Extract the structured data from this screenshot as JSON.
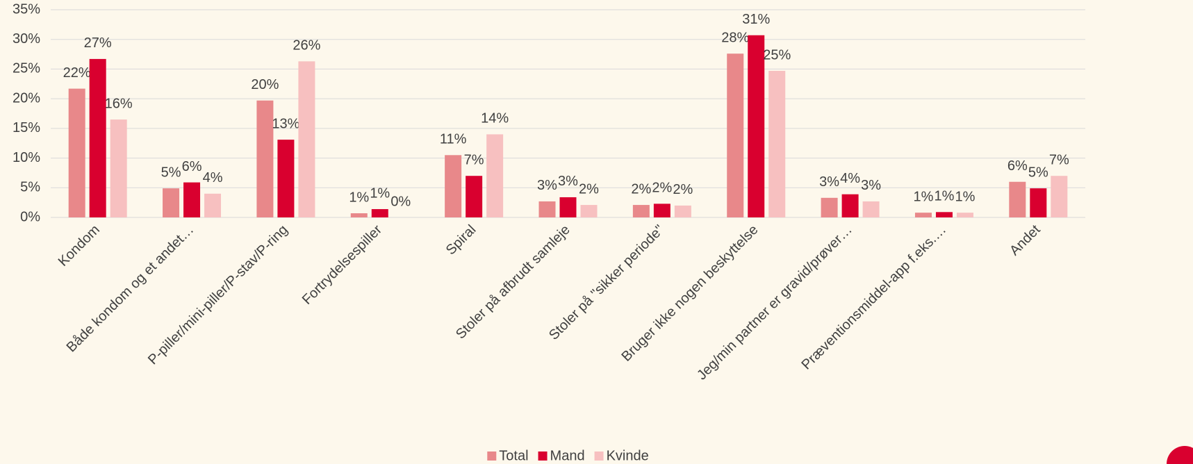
{
  "chart_data": {
    "type": "bar",
    "categories": [
      "Kondom",
      "Både kondom og et andet…",
      "P-piller/mini-piller/P-stav/P-ring",
      "Fortrydelsespiller",
      "Spiral",
      "Stoler på afbrudt samleje",
      "Stoler på \"sikker periode\"",
      "Bruger ikke nogen beskyttelse",
      "Jeg/min partner er gravid/prøver…",
      "Præventionsmiddel-app f.eks.…",
      "Andet"
    ],
    "series": [
      {
        "name": "Total",
        "color": "#e8888a",
        "values": [
          21.7,
          4.9,
          19.7,
          0.7,
          10.5,
          2.7,
          2.1,
          27.6,
          3.3,
          0.8,
          6.0
        ],
        "value_labels": [
          "22%",
          "5%",
          "20%",
          "1%",
          "11%",
          "3%",
          "2%",
          "28%",
          "3%",
          "1%",
          "6%"
        ]
      },
      {
        "name": "Mand",
        "color": "#d9002f",
        "values": [
          26.7,
          5.9,
          13.1,
          1.4,
          7.0,
          3.4,
          2.3,
          30.7,
          3.9,
          0.9,
          4.9
        ],
        "value_labels": [
          "27%",
          "6%",
          "13%",
          "1%",
          "7%",
          "3%",
          "2%",
          "31%",
          "4%",
          "1%",
          "5%"
        ]
      },
      {
        "name": "Kvinde",
        "color": "#f7c0c0",
        "values": [
          16.5,
          4.0,
          26.3,
          0,
          14.0,
          2.1,
          2.0,
          24.7,
          2.7,
          0.8,
          7.0
        ],
        "value_labels": [
          "16%",
          "4%",
          "26%",
          "0%",
          "14%",
          "2%",
          "2%",
          "25%",
          "3%",
          "1%",
          "7%"
        ]
      }
    ],
    "ylim": [
      0,
      35
    ],
    "yticks": [
      {
        "value": 0,
        "label": "0%"
      },
      {
        "value": 5,
        "label": "5%"
      },
      {
        "value": 10,
        "label": "10%"
      },
      {
        "value": 15,
        "label": "15%"
      },
      {
        "value": 20,
        "label": "20%"
      },
      {
        "value": 25,
        "label": "25%"
      },
      {
        "value": 30,
        "label": "30%"
      },
      {
        "value": 35,
        "label": "35%"
      }
    ],
    "grid": true,
    "legend": "bottom"
  }
}
